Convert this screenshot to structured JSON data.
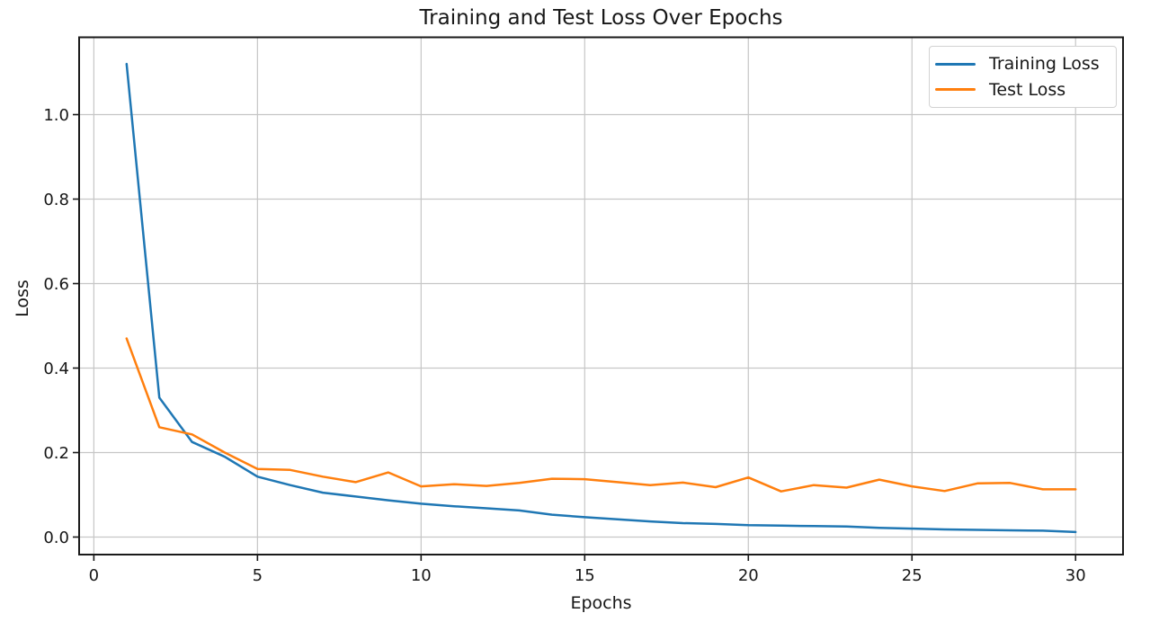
{
  "chart_data": {
    "type": "line",
    "title": "Training and Test Loss Over Epochs",
    "xlabel": "Epochs",
    "ylabel": "Loss",
    "x": [
      1,
      2,
      3,
      4,
      5,
      6,
      7,
      8,
      9,
      10,
      11,
      12,
      13,
      14,
      15,
      16,
      17,
      18,
      19,
      20,
      21,
      22,
      23,
      24,
      25,
      26,
      27,
      28,
      29,
      30
    ],
    "series": [
      {
        "name": "Training Loss",
        "color": "#1f77b4",
        "values": [
          1.12,
          0.33,
          0.225,
          0.19,
          0.143,
          0.123,
          0.105,
          0.096,
          0.087,
          0.079,
          0.073,
          0.068,
          0.063,
          0.053,
          0.047,
          0.042,
          0.037,
          0.033,
          0.031,
          0.028,
          0.027,
          0.026,
          0.025,
          0.022,
          0.02,
          0.018,
          0.017,
          0.016,
          0.015,
          0.012
        ]
      },
      {
        "name": "Test Loss",
        "color": "#ff7f0e",
        "values": [
          0.47,
          0.26,
          0.243,
          0.2,
          0.161,
          0.159,
          0.143,
          0.13,
          0.153,
          0.12,
          0.125,
          0.121,
          0.128,
          0.138,
          0.137,
          0.13,
          0.123,
          0.129,
          0.118,
          0.141,
          0.108,
          0.123,
          0.117,
          0.136,
          0.12,
          0.109,
          0.127,
          0.128,
          0.113,
          0.113
        ]
      }
    ],
    "xlim": [
      -0.45,
      31.45
    ],
    "ylim": [
      -0.0415,
      1.183
    ],
    "xticks": [
      0,
      5,
      10,
      15,
      20,
      25,
      30
    ],
    "xtick_labels": [
      "0",
      "5",
      "10",
      "15",
      "20",
      "25",
      "30"
    ],
    "yticks": [
      0.0,
      0.2,
      0.4,
      0.6,
      0.8,
      1.0
    ],
    "ytick_labels": [
      "0.0",
      "0.2",
      "0.4",
      "0.6",
      "0.8",
      "1.0"
    ],
    "grid": true,
    "grid_color": "#c6c6c6",
    "spine_color": "#1a1a1a",
    "background": "#ffffff",
    "legend_position": "upper right",
    "legend_entries": [
      "Training Loss",
      "Test Loss"
    ]
  }
}
